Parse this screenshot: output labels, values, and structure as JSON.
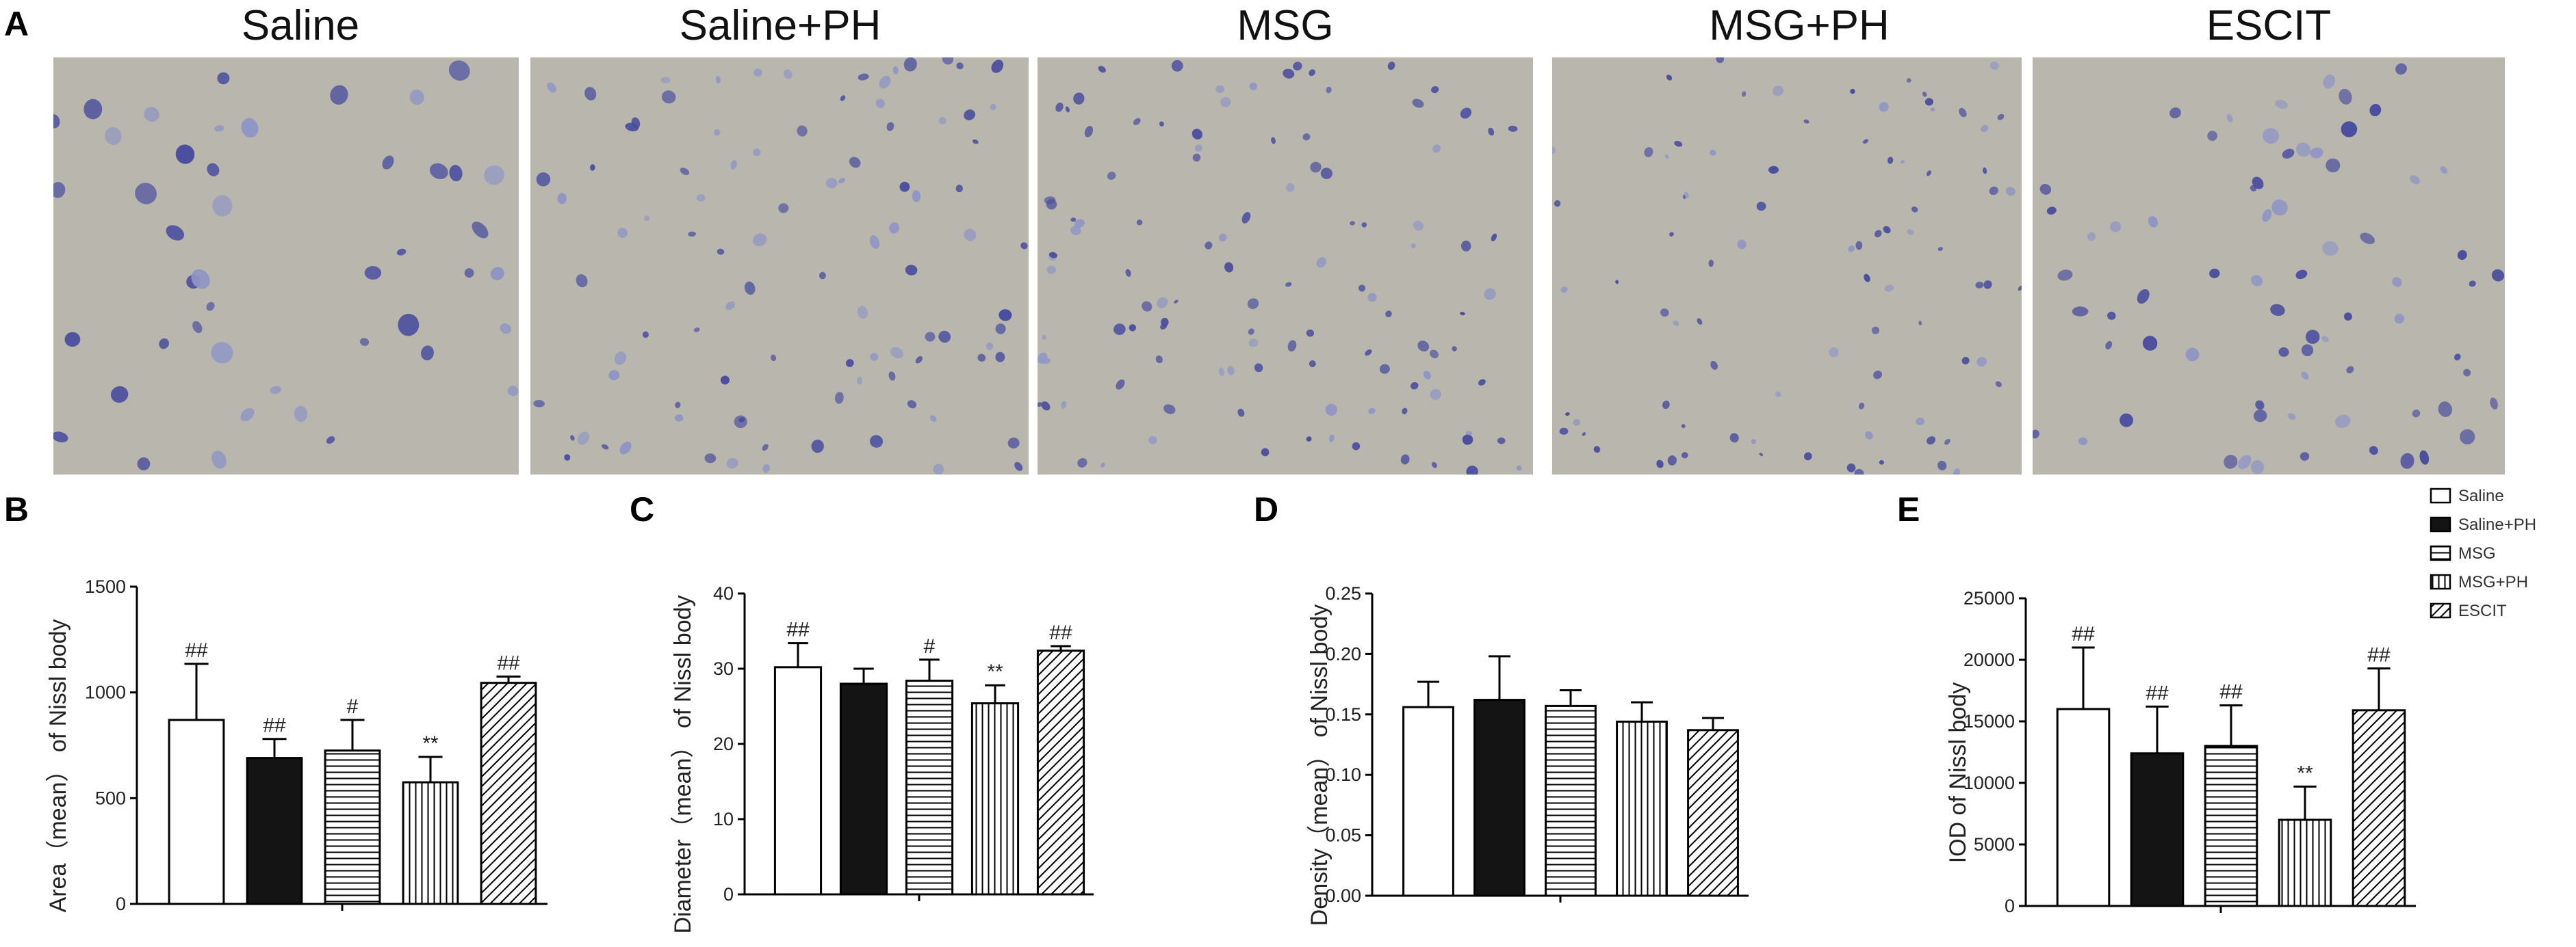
{
  "panel_labels": {
    "a": "A",
    "b": "B",
    "c": "C",
    "d": "D",
    "e": "E"
  },
  "photos": [
    {
      "title": "Saline",
      "description_density": "high"
    },
    {
      "title": "Saline+PH"
    },
    {
      "title": "MSG"
    },
    {
      "title": "MSG+PH"
    },
    {
      "title": "ESCIT"
    }
  ],
  "groups": [
    "Saline",
    "Saline+PH",
    "MSG",
    "MSG+PH",
    "ESCIT"
  ],
  "legend": [
    "Saline",
    "Saline+PH",
    "MSG",
    "MSG+PH",
    "ESCIT"
  ],
  "colors": {
    "bar_edge": "#000000",
    "solid_fill": "#141414",
    "photo_bg": "#b9b6ae",
    "cell": "#4a4f9e"
  },
  "chart_data": [
    {
      "type": "bar",
      "panel": "B",
      "ylabel": "Area（mean） of Nissl body",
      "ylim": [
        0,
        1500
      ],
      "yticks": [
        0,
        500,
        1000,
        1500
      ],
      "categories": [
        "Saline",
        "Saline+PH",
        "MSG",
        "MSG+PH",
        "ESCIT"
      ],
      "values": [
        870,
        690,
        725,
        575,
        1045
      ],
      "errors": [
        265,
        90,
        145,
        120,
        30
      ],
      "annotations": [
        "##",
        "##",
        "#",
        "**",
        "##"
      ]
    },
    {
      "type": "bar",
      "panel": "C",
      "ylabel": "Diameter（mean） of Nissl body",
      "ylim": [
        0,
        40
      ],
      "yticks": [
        0,
        10,
        20,
        30,
        40
      ],
      "categories": [
        "Saline",
        "Saline+PH",
        "MSG",
        "MSG+PH",
        "ESCIT"
      ],
      "values": [
        30.2,
        28,
        28.4,
        25.4,
        32.4
      ],
      "errors": [
        3.2,
        2,
        2.8,
        2.4,
        0.6
      ],
      "annotations": [
        "##",
        "",
        "#",
        "**",
        "##"
      ]
    },
    {
      "type": "bar",
      "panel": "D",
      "ylabel": "Density（mean） of Nissl body",
      "ylim": [
        0,
        0.25
      ],
      "yticks": [
        "0.00",
        "0.05",
        "0.10",
        "0.15",
        "0.20",
        "0.25"
      ],
      "categories": [
        "Saline",
        "Saline+PH",
        "MSG",
        "MSG+PH",
        "ESCIT"
      ],
      "values": [
        0.156,
        0.162,
        0.157,
        0.144,
        0.137
      ],
      "errors": [
        0.021,
        0.036,
        0.013,
        0.016,
        0.01
      ],
      "annotations": [
        "",
        "",
        "",
        "",
        ""
      ]
    },
    {
      "type": "bar",
      "panel": "E",
      "ylabel": "IOD of Nissl body",
      "ylim": [
        0,
        25000
      ],
      "yticks": [
        0,
        5000,
        10000,
        15000,
        20000,
        25000
      ],
      "categories": [
        "Saline",
        "Saline+PH",
        "MSG",
        "MSG+PH",
        "ESCIT"
      ],
      "values": [
        16000,
        12400,
        13000,
        7000,
        15900
      ],
      "errors": [
        5000,
        3800,
        3300,
        2700,
        3400
      ],
      "annotations": [
        "##",
        "##",
        "##",
        "**",
        "##"
      ]
    }
  ]
}
